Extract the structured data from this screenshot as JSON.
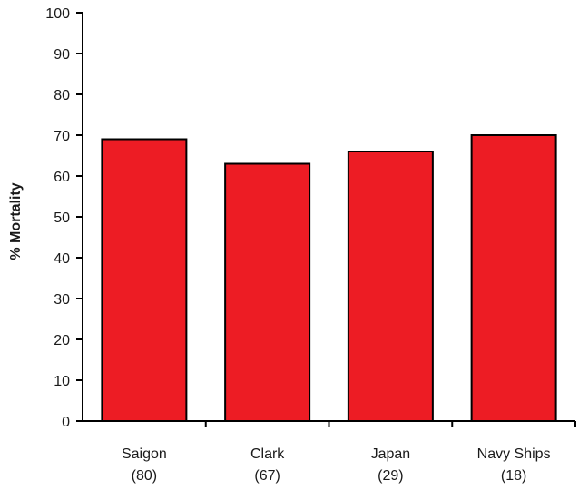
{
  "chart_data": {
    "type": "bar",
    "categories": [
      {
        "name": "Saigon",
        "count": "(80)"
      },
      {
        "name": "Clark",
        "count": "(67)"
      },
      {
        "name": "Japan",
        "count": "(29)"
      },
      {
        "name": "Navy Ships",
        "count": "(18)"
      }
    ],
    "values": [
      69,
      63,
      66,
      70
    ],
    "title": "",
    "xlabel": "",
    "ylabel": "% Mortality",
    "ylim": [
      0,
      100
    ],
    "yticks": [
      0,
      10,
      20,
      30,
      40,
      50,
      60,
      70,
      80,
      90,
      100
    ],
    "grid": false,
    "legend": "none",
    "bar_color": "#ED1C24",
    "edge_color": "#000000"
  }
}
